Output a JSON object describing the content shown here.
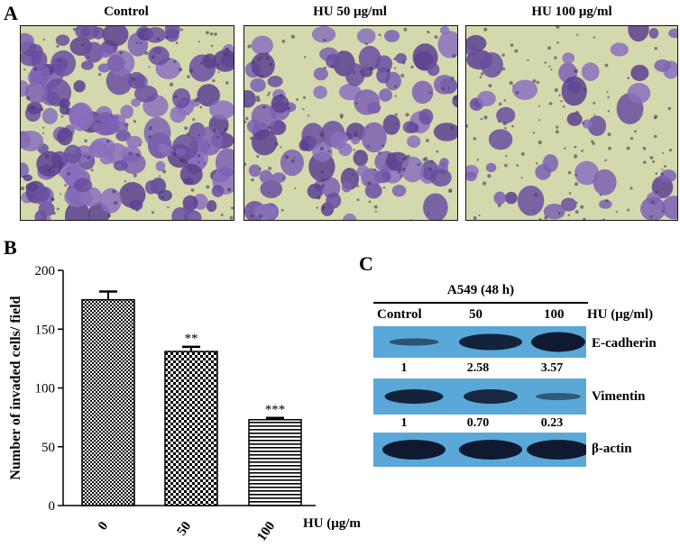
{
  "panel_a": {
    "letter": "A",
    "titles": [
      "Control",
      "HU 50 μg/ml",
      "HU 100 μg/ml"
    ]
  },
  "panel_b": {
    "letter": "B",
    "xaxis_unit": "HU (μg/ml)"
  },
  "panel_c": {
    "letter": "C",
    "cell_line": "A549 (48 h)",
    "lane_labels": [
      "Control",
      "50",
      "100"
    ],
    "treatment_label": "HU (μg/ml)",
    "rows": [
      {
        "protein": "E-cadherin",
        "quant": [
          "1",
          "2.58",
          "3.57"
        ]
      },
      {
        "protein": "Vimentin",
        "quant": [
          "1",
          "0.70",
          "0.23"
        ]
      },
      {
        "protein": "β-actin"
      }
    ],
    "blot_bg": "#5aa8d8"
  },
  "chart_data": {
    "type": "bar",
    "categories": [
      "0",
      "50",
      "100"
    ],
    "values": [
      175,
      131,
      73
    ],
    "errors": [
      7,
      4,
      1.5
    ],
    "significance": [
      "",
      "**",
      "***"
    ],
    "ylabel": "Number of invaded cells/ field",
    "xlabel": "HU (μg/ml)",
    "ylim": [
      0,
      200
    ],
    "yticks": [
      0,
      50,
      100,
      150,
      200
    ],
    "patterns": [
      "checker-fine",
      "checker-bold",
      "horizontal-lines"
    ]
  }
}
